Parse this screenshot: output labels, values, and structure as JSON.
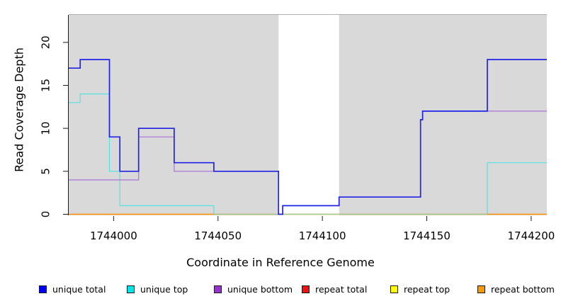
{
  "chart_data": {
    "type": "line",
    "subtype": "step-coverage",
    "title": "",
    "xlabel": "Coordinate in Reference Genome",
    "ylabel": "Read Coverage Depth",
    "xlim": [
      1743978.5,
      1744207.5
    ],
    "ylim": [
      0,
      23.2
    ],
    "x_ticks": [
      1744000,
      1744050,
      1744100,
      1744150,
      1744200
    ],
    "y_ticks": [
      0,
      5,
      10,
      15,
      20
    ],
    "grid": false,
    "legend_position": "bottom",
    "plot_background": "#d9d9d9",
    "gap_band": {
      "x0": 1744079,
      "x1": 1744108,
      "color": "#ffffff"
    },
    "series": [
      {
        "name": "unique total",
        "color": "#2222e6",
        "swatch": "#0000ee",
        "line_width": 1.7,
        "breaks": [
          1743978.5,
          1743984,
          1743998,
          1744003,
          1744012,
          1744029,
          1744048,
          1744079,
          1744081,
          1744108,
          1744147,
          1744148,
          1744179,
          1744207.5
        ],
        "values": [
          17,
          18,
          9,
          5,
          10,
          6,
          5,
          0,
          1,
          2,
          11,
          12,
          18
        ]
      },
      {
        "name": "unique top",
        "color": "#55e2e2",
        "swatch": "#00e5e5",
        "line_width": 1.2,
        "breaks": [
          1743978.5,
          1743984,
          1743998,
          1744003,
          1744048,
          1744179,
          1744207.5
        ],
        "values": [
          13,
          14,
          5,
          1,
          0,
          6
        ]
      },
      {
        "name": "unique bottom",
        "color": "#a972da",
        "swatch": "#9b30d9",
        "line_width": 1.2,
        "breaks": [
          1743978.5,
          1744012,
          1744029,
          1744079,
          1744081,
          1744108,
          1744147,
          1744148,
          1744207.5
        ],
        "values": [
          4,
          9,
          5,
          0,
          1,
          2,
          11,
          12
        ]
      },
      {
        "name": "repeat total",
        "color": "#dd2222",
        "swatch": "#ee1111",
        "line_width": 1.0,
        "breaks": [
          1743978.5,
          1744207.5
        ],
        "values": [
          0
        ]
      },
      {
        "name": "repeat top",
        "color": "#f0f000",
        "swatch": "#ffff00",
        "line_width": 1.0,
        "breaks": [
          1743978.5,
          1744207.5
        ],
        "values": [
          0
        ]
      },
      {
        "name": "repeat bottom",
        "color": "#ff9200",
        "swatch": "#ff9900",
        "line_width": 1.4,
        "breaks": [
          1743978.5,
          1744207.5
        ],
        "values": [
          0
        ]
      }
    ],
    "baseline_overlay": {
      "color": "#9ccf9c",
      "x0": 1744048,
      "x1": 1744179,
      "y": 0
    },
    "x_tick_labels": [
      "1744000",
      "1744050",
      "1744100",
      "1744150",
      "1744200"
    ],
    "y_tick_labels": [
      "0",
      "5",
      "10",
      "15",
      "20"
    ]
  }
}
